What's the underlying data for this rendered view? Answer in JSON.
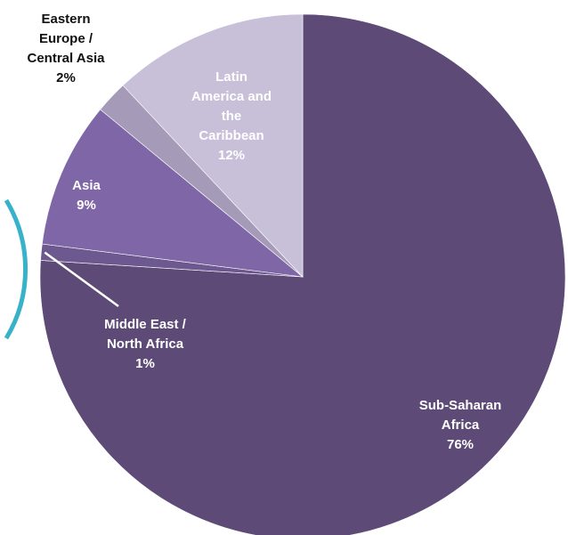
{
  "chart_data": {
    "type": "pie",
    "title": "",
    "slices": [
      {
        "lines": [
          "Sub-Saharan",
          "Africa"
        ],
        "pct_label": "76%",
        "value": 76,
        "color": "#5d4a77",
        "text_color": "#ffffff"
      },
      {
        "lines": [
          "Middle East /",
          "North Africa"
        ],
        "pct_label": "1%",
        "value": 1,
        "color": "#6e5890",
        "text_color": "#ffffff"
      },
      {
        "lines": [
          "Asia"
        ],
        "pct_label": "9%",
        "value": 9,
        "color": "#7f66a6",
        "text_color": "#ffffff"
      },
      {
        "lines": [
          "Eastern",
          "Europe /",
          "Central Asia"
        ],
        "pct_label": "2%",
        "value": 2,
        "color": "#a69ab9",
        "text_color": "#111111"
      },
      {
        "lines": [
          "Latin",
          "America and",
          "the",
          "Caribbean"
        ],
        "pct_label": "12%",
        "value": 12,
        "color": "#c8bfd8",
        "text_color": "#ffffff"
      }
    ]
  },
  "colors": {
    "accent_ring": "#38b2c9",
    "leader_line": "#ffffff"
  }
}
